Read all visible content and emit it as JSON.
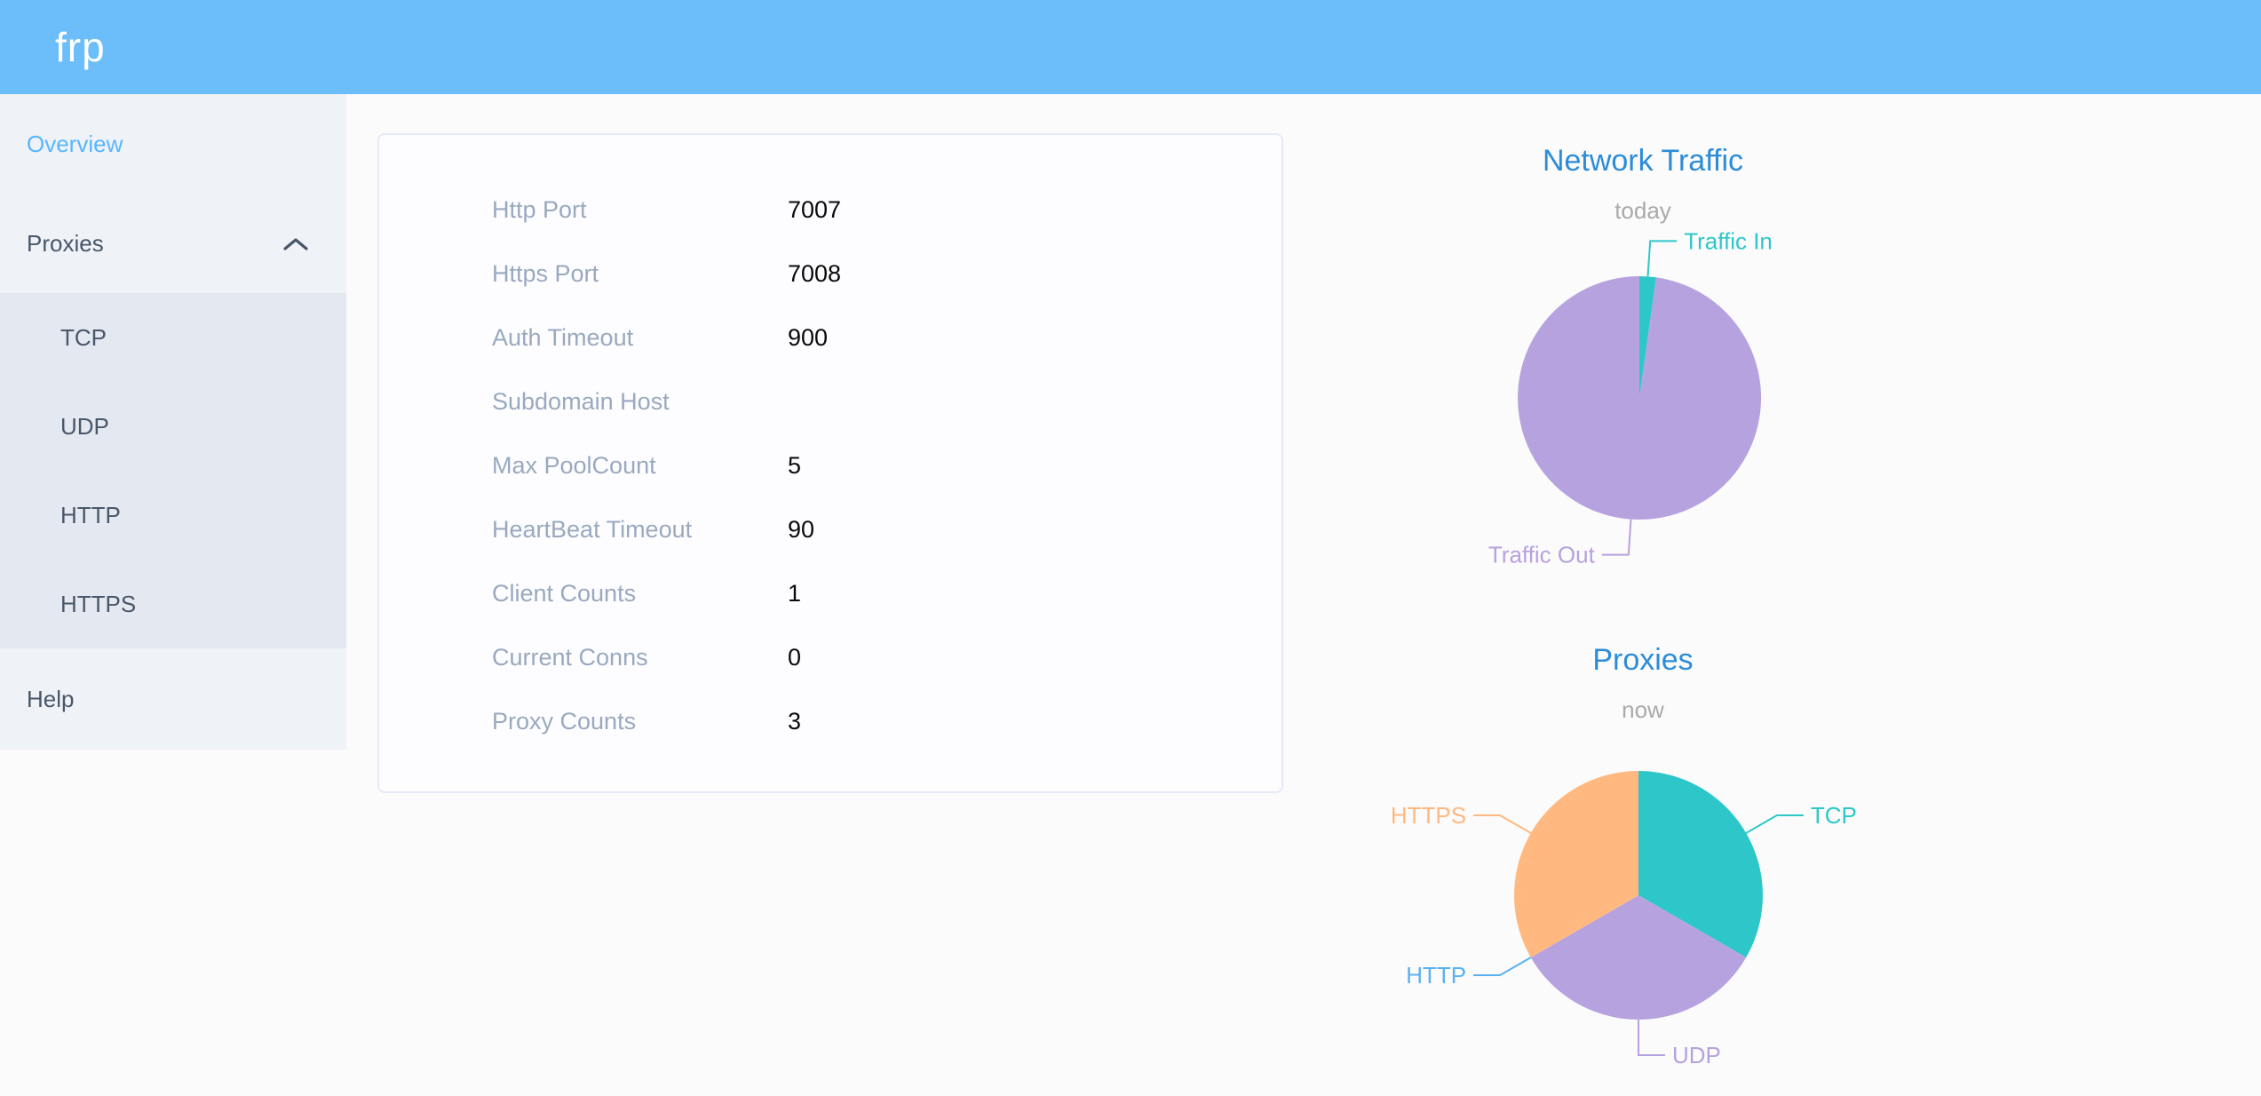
{
  "header": {
    "logo_text": "frp",
    "background": "#6cbefa"
  },
  "sidebar": {
    "background": "#eff2f7",
    "submenu_background": "#e4e8f1",
    "text_color": "#48576a",
    "active_color": "#58b7ff",
    "items": [
      {
        "label": "Overview",
        "active": true
      },
      {
        "label": "Proxies",
        "expanded": true,
        "children": [
          {
            "label": "TCP"
          },
          {
            "label": "UDP"
          },
          {
            "label": "HTTP"
          },
          {
            "label": "HTTPS"
          }
        ]
      },
      {
        "label": "Help"
      }
    ]
  },
  "config_card": {
    "rows": [
      {
        "label": "Http Port",
        "value": "7007"
      },
      {
        "label": "Https Port",
        "value": "7008"
      },
      {
        "label": "Auth Timeout",
        "value": "900"
      },
      {
        "label": "Subdomain Host",
        "value": ""
      },
      {
        "label": "Max PoolCount",
        "value": "5"
      },
      {
        "label": "HeartBeat Timeout",
        "value": "90"
      },
      {
        "label": "Client Counts",
        "value": "1"
      },
      {
        "label": "Current Conns",
        "value": "0"
      },
      {
        "label": "Proxy Counts",
        "value": "3"
      }
    ]
  },
  "chart_data": [
    {
      "type": "pie",
      "title": "Network Traffic",
      "subtitle": "today",
      "title_color": "#2d8cd8",
      "subtitle_color": "#aaaaaa",
      "legend": false,
      "labels_position": "outside-with-leader-lines",
      "values_are": "percent of circle, estimated from arc angles",
      "series": [
        {
          "name": "Traffic In",
          "value": 2.2,
          "color": "#2ec7c9"
        },
        {
          "name": "Traffic Out",
          "value": 97.8,
          "color": "#b6a2de"
        }
      ]
    },
    {
      "type": "pie",
      "title": "Proxies",
      "subtitle": "now",
      "title_color": "#2d8cd8",
      "subtitle_color": "#aaaaaa",
      "legend": false,
      "labels_position": "outside-with-leader-lines",
      "series": [
        {
          "name": "TCP",
          "value": 1,
          "color": "#2ec7c9"
        },
        {
          "name": "UDP",
          "value": 1,
          "color": "#b6a2de"
        },
        {
          "name": "HTTP",
          "value": 0,
          "color": "#5ab1ef"
        },
        {
          "name": "HTTPS",
          "value": 1,
          "color": "#ffb980"
        }
      ]
    }
  ]
}
